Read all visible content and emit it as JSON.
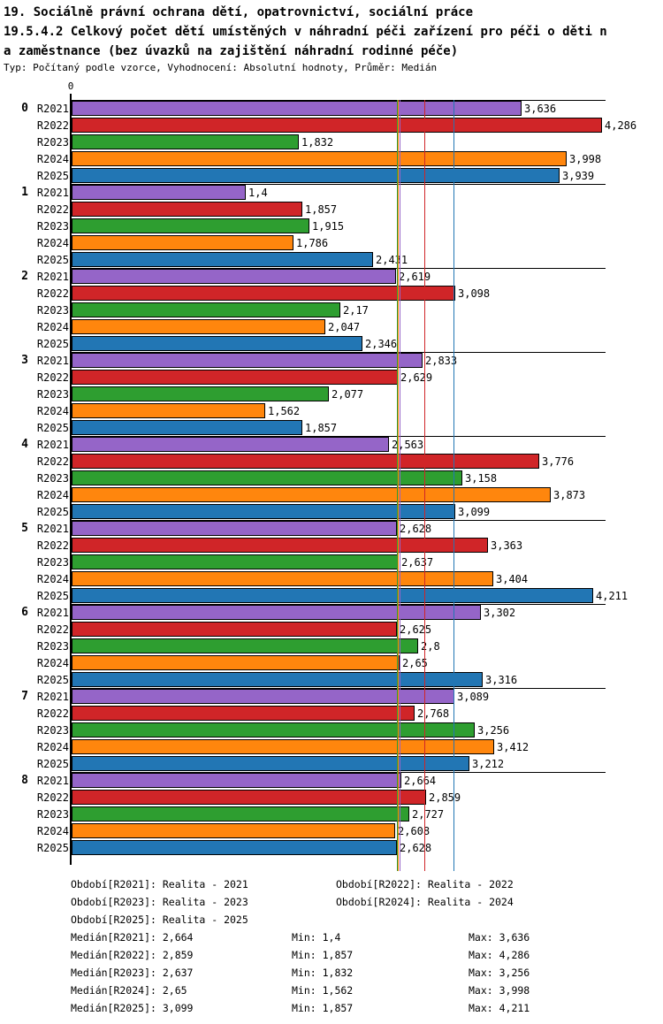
{
  "header": {
    "line1": "19. Sociálně právní ochrana dětí, opatrovnictví, sociální práce",
    "line2": "19.5.4.2 Celkový počet dětí umístěných v náhradní péči zařízení pro péči o děti n",
    "line3": "a zaměstnance (bez úvazků na zajištění náhradní rodinné péče)",
    "line4": "Typ: Počítaný podle vzorce, Vyhodnocení: Absolutní hodnoty, Průměr: Medián"
  },
  "chart_data": {
    "type": "bar",
    "orientation": "horizontal",
    "xlabel": "",
    "ylabel": "",
    "axis_zero_label": "0",
    "xlim": [
      0,
      4.33
    ],
    "decimal_separator": ",",
    "grid": false,
    "series": [
      {
        "name": "R2021",
        "color": "#9565c8",
        "median": 2.664,
        "min": 1.4,
        "max": 3.636
      },
      {
        "name": "R2022",
        "color": "#d02528",
        "median": 2.859,
        "min": 1.857,
        "max": 4.286
      },
      {
        "name": "R2023",
        "color": "#2e9e30",
        "median": 2.637,
        "min": 1.832,
        "max": 3.256
      },
      {
        "name": "R2024",
        "color": "#ff860d",
        "median": 2.65,
        "min": 1.562,
        "max": 3.998
      },
      {
        "name": "R2025",
        "color": "#2276b4",
        "median": 3.099,
        "min": 1.857,
        "max": 4.211
      }
    ],
    "groups": [
      {
        "label": "0",
        "values": [
          3.636,
          4.286,
          1.832,
          3.998,
          3.939
        ]
      },
      {
        "label": "1",
        "values": [
          1.4,
          1.857,
          1.915,
          1.786,
          2.431
        ]
      },
      {
        "label": "2",
        "values": [
          2.619,
          3.098,
          2.17,
          2.047,
          2.346
        ]
      },
      {
        "label": "3",
        "values": [
          2.833,
          2.629,
          2.077,
          1.562,
          1.857
        ]
      },
      {
        "label": "4",
        "values": [
          2.563,
          3.776,
          3.158,
          3.873,
          3.099
        ]
      },
      {
        "label": "5",
        "values": [
          2.628,
          3.363,
          2.637,
          3.404,
          4.211
        ]
      },
      {
        "label": "6",
        "values": [
          3.302,
          2.625,
          2.8,
          2.65,
          3.316
        ]
      },
      {
        "label": "7",
        "values": [
          3.089,
          2.768,
          3.256,
          3.412,
          3.212
        ]
      },
      {
        "label": "8",
        "values": [
          2.664,
          2.859,
          2.727,
          2.608,
          2.628
        ]
      }
    ]
  },
  "legend": {
    "period_rows": [
      [
        "Období[R2021]: Realita - 2021",
        "Období[R2022]: Realita - 2022"
      ],
      [
        "Období[R2023]: Realita - 2023",
        "Období[R2024]: Realita - 2024"
      ],
      [
        "Období[R2025]: Realita - 2025"
      ]
    ],
    "stat_rows": [
      {
        "median": "Medián[R2021]: 2,664",
        "min": "Min: 1,4",
        "max": "Max: 3,636"
      },
      {
        "median": "Medián[R2022]: 2,859",
        "min": "Min: 1,857",
        "max": "Max: 4,286"
      },
      {
        "median": "Medián[R2023]: 2,637",
        "min": "Min: 1,832",
        "max": "Max: 3,256"
      },
      {
        "median": "Medián[R2024]: 2,65",
        "min": "Min: 1,562",
        "max": "Max: 3,998"
      },
      {
        "median": "Medián[R2025]: 3,099",
        "min": "Min: 1,857",
        "max": "Max: 4,211"
      }
    ]
  }
}
